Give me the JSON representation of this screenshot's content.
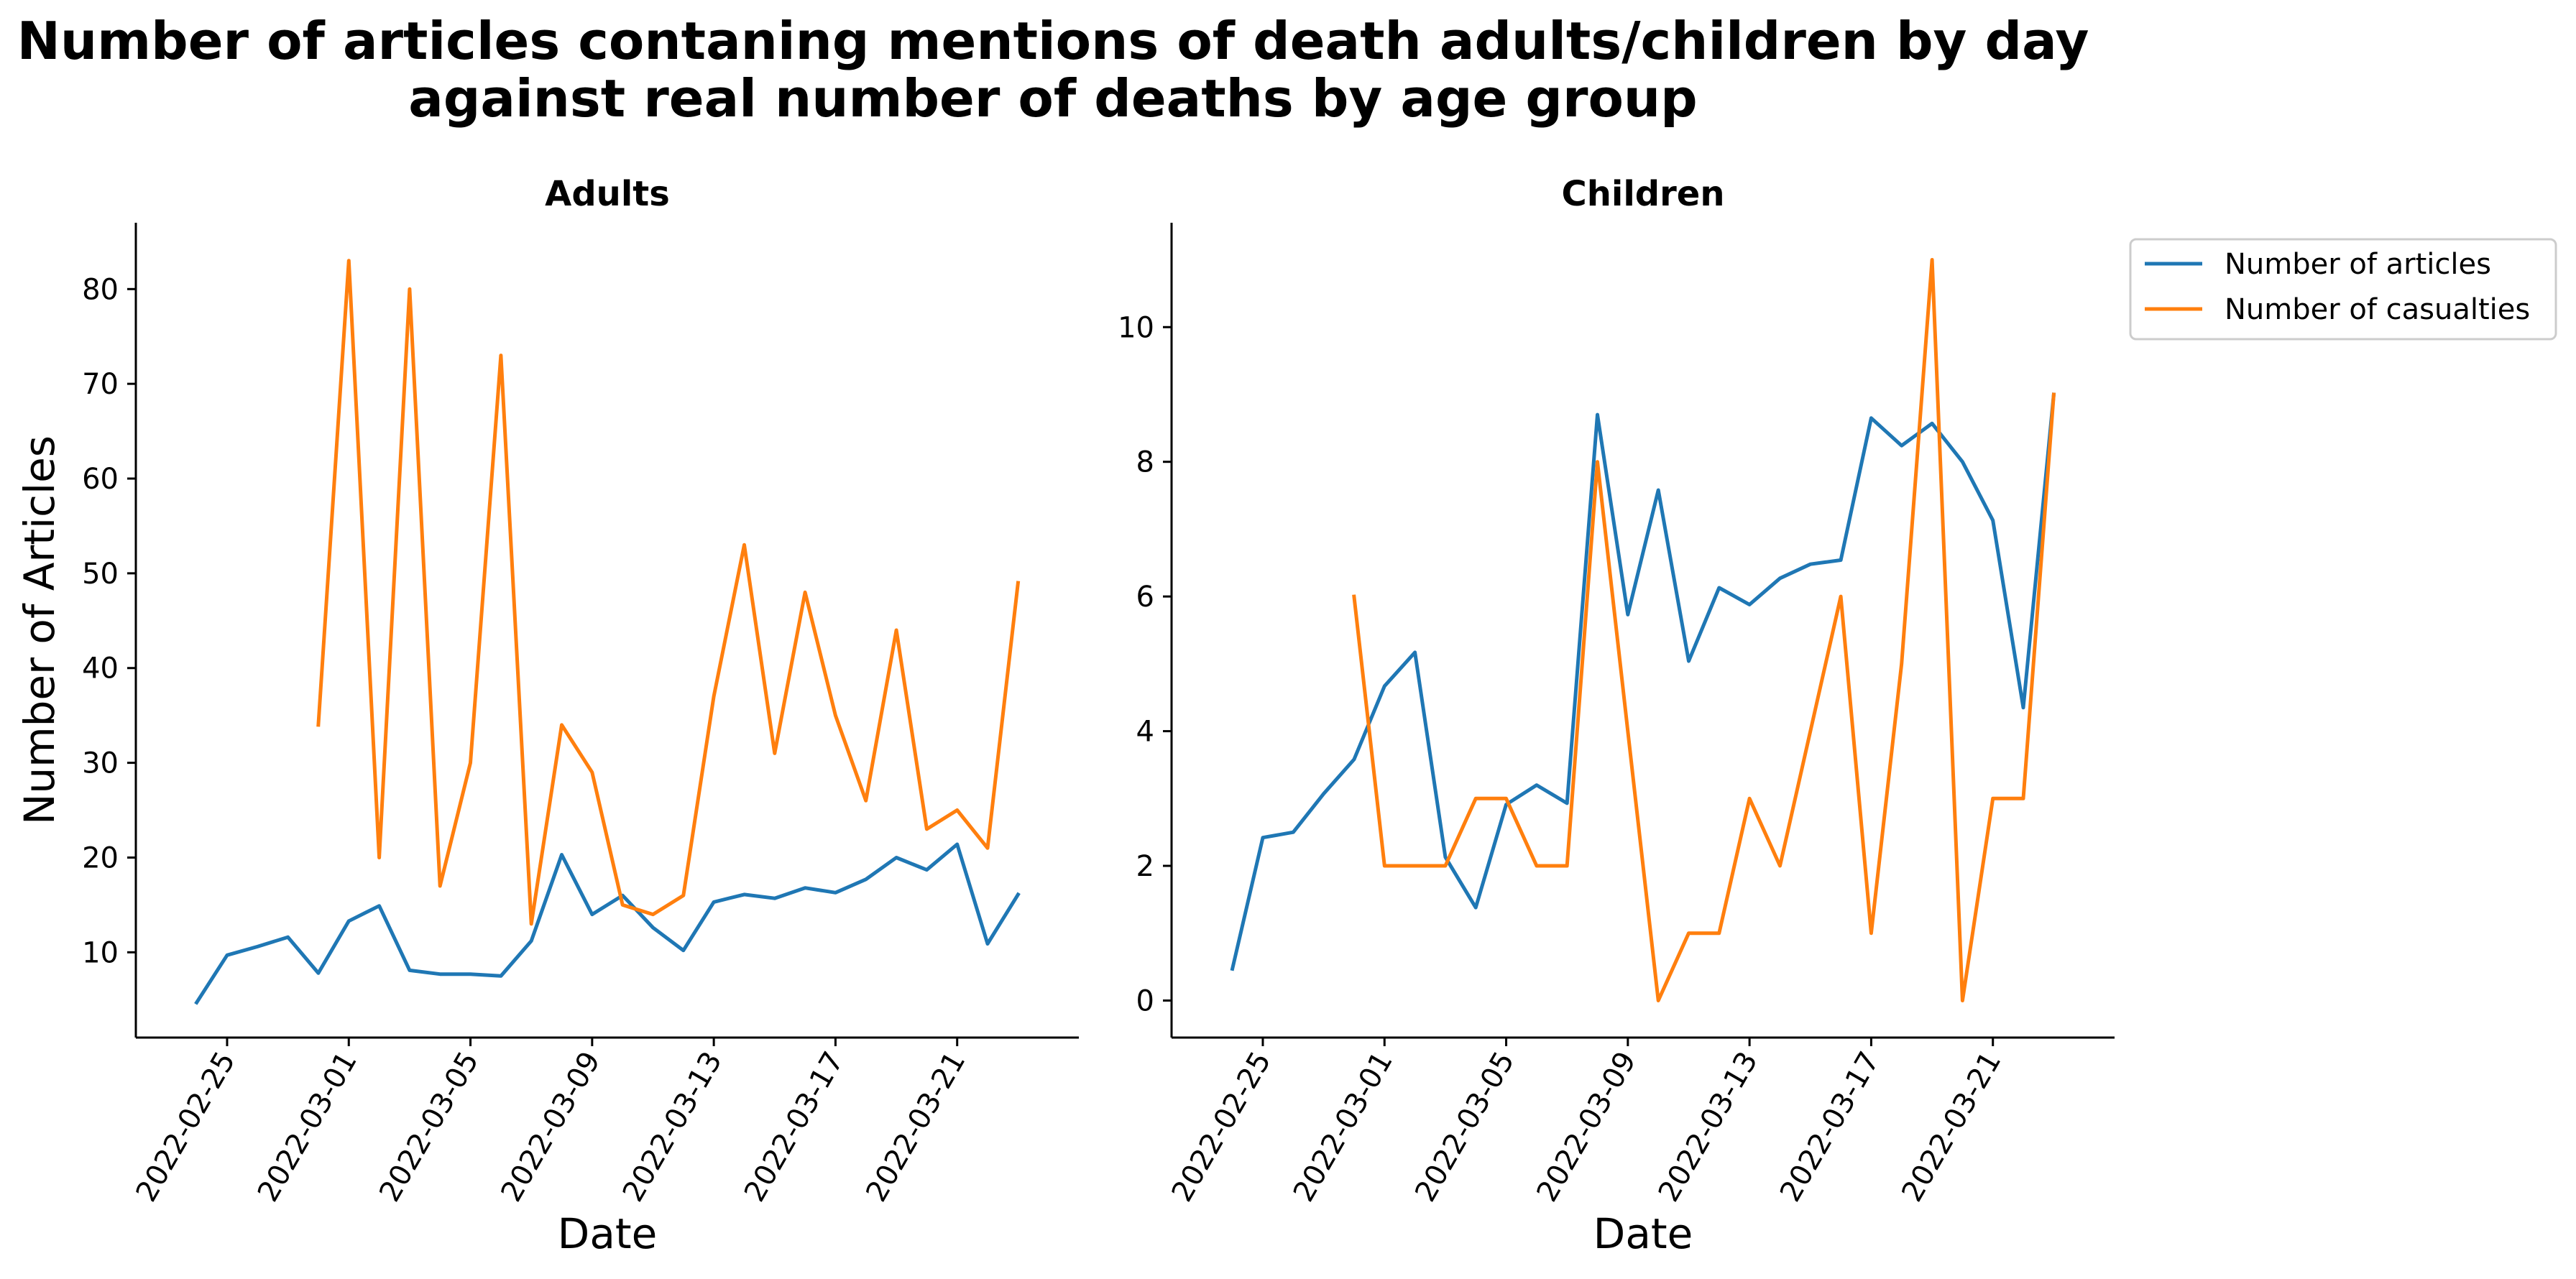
{
  "figure": {
    "title_line1": "Number of articles contaning mentions of death adults/children by day",
    "title_line2": "against real number of deaths by age group"
  },
  "legend": {
    "placement": "upper-right-outside",
    "items": [
      {
        "label": "Number of articles",
        "color": "#1f77b4"
      },
      {
        "label": "Number of casualties",
        "color": "#ff7f0e"
      }
    ]
  },
  "chart_data": [
    {
      "type": "line",
      "title": "Adults",
      "xlabel": "Date",
      "ylabel": "Number of Articles",
      "x_ticks": [
        "2022-02-25",
        "2022-03-01",
        "2022-03-05",
        "2022-03-09",
        "2022-03-13",
        "2022-03-17",
        "2022-03-21"
      ],
      "y_ticks": [
        10,
        20,
        30,
        40,
        50,
        60,
        70,
        80
      ],
      "ylim": [
        1,
        87
      ],
      "xlim": [
        "2022-02-22",
        "2022-03-25"
      ],
      "grid": false,
      "series": [
        {
          "name": "Number of articles",
          "color": "#1f77b4",
          "points": [
            [
              "2022-02-24",
              4.7
            ],
            [
              "2022-02-25",
              9.7
            ],
            [
              "2022-02-26",
              10.6
            ],
            [
              "2022-02-27",
              11.6
            ],
            [
              "2022-02-28",
              7.8
            ],
            [
              "2022-03-01",
              13.3
            ],
            [
              "2022-03-02",
              14.9
            ],
            [
              "2022-03-03",
              8.1
            ],
            [
              "2022-03-04",
              7.7
            ],
            [
              "2022-03-05",
              7.7
            ],
            [
              "2022-03-06",
              7.5
            ],
            [
              "2022-03-07",
              11.2
            ],
            [
              "2022-03-08",
              20.3
            ],
            [
              "2022-03-09",
              14.0
            ],
            [
              "2022-03-10",
              16.0
            ],
            [
              "2022-03-11",
              12.6
            ],
            [
              "2022-03-12",
              10.2
            ],
            [
              "2022-03-13",
              15.3
            ],
            [
              "2022-03-14",
              16.1
            ],
            [
              "2022-03-15",
              15.7
            ],
            [
              "2022-03-16",
              16.8
            ],
            [
              "2022-03-17",
              16.3
            ],
            [
              "2022-03-18",
              17.7
            ],
            [
              "2022-03-19",
              20.0
            ],
            [
              "2022-03-20",
              18.7
            ],
            [
              "2022-03-21",
              21.4
            ],
            [
              "2022-03-22",
              10.9
            ],
            [
              "2022-03-23",
              16.1
            ]
          ]
        },
        {
          "name": "Number of casualties",
          "color": "#ff7f0e",
          "points": [
            [
              "2022-02-28",
              34
            ],
            [
              "2022-03-01",
              83
            ],
            [
              "2022-03-02",
              20
            ],
            [
              "2022-03-03",
              80
            ],
            [
              "2022-03-04",
              17
            ],
            [
              "2022-03-05",
              30
            ],
            [
              "2022-03-06",
              73
            ],
            [
              "2022-03-07",
              13
            ],
            [
              "2022-03-08",
              34
            ],
            [
              "2022-03-09",
              29
            ],
            [
              "2022-03-10",
              15
            ],
            [
              "2022-03-11",
              14
            ],
            [
              "2022-03-12",
              16
            ],
            [
              "2022-03-13",
              37
            ],
            [
              "2022-03-14",
              53
            ],
            [
              "2022-03-15",
              31
            ],
            [
              "2022-03-16",
              48
            ],
            [
              "2022-03-17",
              35
            ],
            [
              "2022-03-18",
              26
            ],
            [
              "2022-03-19",
              44
            ],
            [
              "2022-03-20",
              23
            ],
            [
              "2022-03-21",
              25
            ],
            [
              "2022-03-22",
              21
            ],
            [
              "2022-03-23",
              49
            ]
          ]
        }
      ]
    },
    {
      "type": "line",
      "title": "Children",
      "xlabel": "Date",
      "ylabel": "",
      "x_ticks": [
        "2022-02-25",
        "2022-03-01",
        "2022-03-05",
        "2022-03-09",
        "2022-03-13",
        "2022-03-17",
        "2022-03-21"
      ],
      "y_ticks": [
        0,
        2,
        4,
        6,
        8,
        10
      ],
      "ylim": [
        -0.55,
        11.55
      ],
      "xlim": [
        "2022-02-22",
        "2022-03-25"
      ],
      "grid": false,
      "series": [
        {
          "name": "Number of articles",
          "color": "#1f77b4",
          "points": [
            [
              "2022-02-24",
              0.47
            ],
            [
              "2022-02-25",
              2.42
            ],
            [
              "2022-02-26",
              2.5
            ],
            [
              "2022-02-27",
              3.07
            ],
            [
              "2022-02-28",
              3.58
            ],
            [
              "2022-03-01",
              4.67
            ],
            [
              "2022-03-02",
              5.17
            ],
            [
              "2022-03-03",
              2.13
            ],
            [
              "2022-03-04",
              1.38
            ],
            [
              "2022-03-05",
              2.91
            ],
            [
              "2022-03-06",
              3.2
            ],
            [
              "2022-03-07",
              2.93
            ],
            [
              "2022-03-08",
              8.7
            ],
            [
              "2022-03-09",
              5.73
            ],
            [
              "2022-03-10",
              7.58
            ],
            [
              "2022-03-11",
              5.04
            ],
            [
              "2022-03-12",
              6.13
            ],
            [
              "2022-03-13",
              5.88
            ],
            [
              "2022-03-14",
              6.27
            ],
            [
              "2022-03-15",
              6.48
            ],
            [
              "2022-03-16",
              6.54
            ],
            [
              "2022-03-17",
              8.65
            ],
            [
              "2022-03-18",
              8.24
            ],
            [
              "2022-03-19",
              8.57
            ],
            [
              "2022-03-20",
              8.0
            ],
            [
              "2022-03-21",
              7.13
            ],
            [
              "2022-03-22",
              4.35
            ],
            [
              "2022-03-23",
              9.0
            ]
          ]
        },
        {
          "name": "Number of casualties",
          "color": "#ff7f0e",
          "points": [
            [
              "2022-02-28",
              6
            ],
            [
              "2022-03-01",
              2
            ],
            [
              "2022-03-02",
              2
            ],
            [
              "2022-03-03",
              2
            ],
            [
              "2022-03-04",
              3
            ],
            [
              "2022-03-05",
              3
            ],
            [
              "2022-03-06",
              2
            ],
            [
              "2022-03-07",
              2
            ],
            [
              "2022-03-08",
              8
            ],
            [
              "2022-03-09",
              4
            ],
            [
              "2022-03-10",
              0
            ],
            [
              "2022-03-11",
              1
            ],
            [
              "2022-03-12",
              1
            ],
            [
              "2022-03-13",
              3
            ],
            [
              "2022-03-14",
              2
            ],
            [
              "2022-03-15",
              4
            ],
            [
              "2022-03-16",
              6
            ],
            [
              "2022-03-17",
              1
            ],
            [
              "2022-03-18",
              5
            ],
            [
              "2022-03-19",
              11
            ],
            [
              "2022-03-20",
              0
            ],
            [
              "2022-03-21",
              3
            ],
            [
              "2022-03-22",
              3
            ],
            [
              "2022-03-23",
              9
            ]
          ]
        }
      ]
    }
  ]
}
